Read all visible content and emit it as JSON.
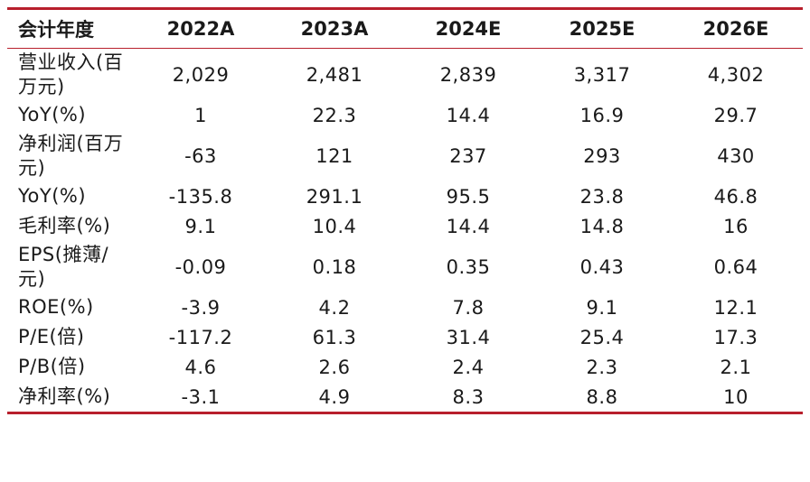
{
  "table": {
    "headers": [
      "会计年度",
      "2022A",
      "2023A",
      "2024E",
      "2025E",
      "2026E"
    ],
    "rows": [
      {
        "label": "营业收入(百万元)",
        "values": [
          "2,029",
          "2,481",
          "2,839",
          "3,317",
          "4,302"
        ]
      },
      {
        "label": "YoY(%)",
        "values": [
          "1",
          "22.3",
          "14.4",
          "16.9",
          "29.7"
        ]
      },
      {
        "label": "净利润(百万元)",
        "values": [
          "-63",
          "121",
          "237",
          "293",
          "430"
        ]
      },
      {
        "label": "YoY(%)",
        "values": [
          "-135.8",
          "291.1",
          "95.5",
          "23.8",
          "46.8"
        ]
      },
      {
        "label": "毛利率(%)",
        "values": [
          "9.1",
          "10.4",
          "14.4",
          "14.8",
          "16"
        ]
      },
      {
        "label": "EPS(摊薄/元)",
        "values": [
          "-0.09",
          "0.18",
          "0.35",
          "0.43",
          "0.64"
        ]
      },
      {
        "label": "ROE(%)",
        "values": [
          "-3.9",
          "4.2",
          "7.8",
          "9.1",
          "12.1"
        ]
      },
      {
        "label": "P/E(倍)",
        "values": [
          "-117.2",
          "61.3",
          "31.4",
          "25.4",
          "17.3"
        ]
      },
      {
        "label": "P/B(倍)",
        "values": [
          "4.6",
          "2.6",
          "2.4",
          "2.3",
          "2.1"
        ]
      },
      {
        "label": "净利率(%)",
        "values": [
          "-3.1",
          "4.9",
          "8.3",
          "8.8",
          "10"
        ]
      }
    ]
  },
  "colors": {
    "rule": "#b81f2c",
    "text": "#1a1a1a"
  }
}
